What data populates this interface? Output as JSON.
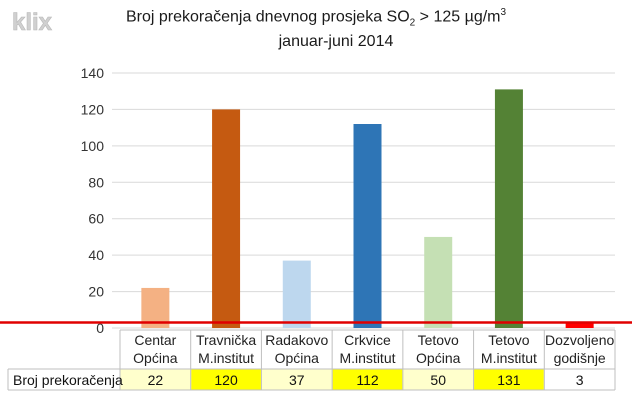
{
  "watermark": {
    "text": "klix",
    "color": "#c8c8c8"
  },
  "title": {
    "line1_prefix": "Broj prekoračenja dnevnog prosjeka  SO",
    "line1_sub": "2",
    "line1_middle": " > 125 µg/m",
    "line1_sup": "3",
    "line2": "januar-juni 2014"
  },
  "chart_data": {
    "type": "bar",
    "title": "Broj prekoračenja dnevnog prosjeka  SO2 > 125 µg/m3",
    "subtitle": "januar-juni 2014",
    "categories": [
      [
        "Centar",
        "Općina"
      ],
      [
        "Travnička",
        "M.institut"
      ],
      [
        "Radakovo",
        "Općina"
      ],
      [
        "Crkvice",
        "M.institut"
      ],
      [
        "Tetovo",
        "Općina"
      ],
      [
        "Tetovo",
        "M.institut"
      ],
      [
        "Dozvoljeno",
        "godišnje"
      ]
    ],
    "series": [
      {
        "name": "Broj prekoračenja",
        "values": [
          22,
          120,
          37,
          112,
          50,
          131,
          3
        ]
      }
    ],
    "bar_colors": [
      "#f4b183",
      "#c55a11",
      "#bdd7ee",
      "#2e75b6",
      "#c5e0b4",
      "#548235",
      "#ff0000"
    ],
    "table_cell_colors": [
      "#ffffcc",
      "#ffff00",
      "#ffffcc",
      "#ffff00",
      "#ffffcc",
      "#ffff00",
      "#ffffff"
    ],
    "reference_line": {
      "value": 3,
      "color": "#e00000"
    },
    "yticks": [
      0,
      20,
      40,
      60,
      80,
      100,
      120,
      140
    ],
    "ylim": [
      0,
      140
    ],
    "xlabel": "",
    "ylabel": "",
    "grid": true,
    "data_table": true
  }
}
